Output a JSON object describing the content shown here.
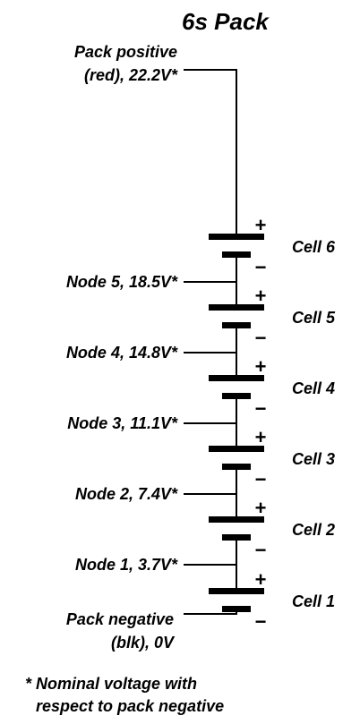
{
  "title": "6s Pack",
  "pack_positive": {
    "line1": "Pack positive",
    "line2": "(red), 22.2V*"
  },
  "pack_negative": {
    "line1": "Pack negative",
    "line2": "(blk), 0V"
  },
  "nodes": [
    "Node 5, 18.5V*",
    "Node 4, 14.8V*",
    "Node 3, 11.1V*",
    "Node 2, 7.4V*",
    "Node 1, 3.7V*"
  ],
  "cells": [
    "Cell 6",
    "Cell 5",
    "Cell 4",
    "Cell 3",
    "Cell 2",
    "Cell 1"
  ],
  "polarity": {
    "plus": "+",
    "minus": "−"
  },
  "footnote": {
    "line1": "* Nominal voltage with",
    "line2": "respect to pack negative"
  },
  "colors": {
    "ink": "#000000",
    "background": "#ffffff"
  }
}
